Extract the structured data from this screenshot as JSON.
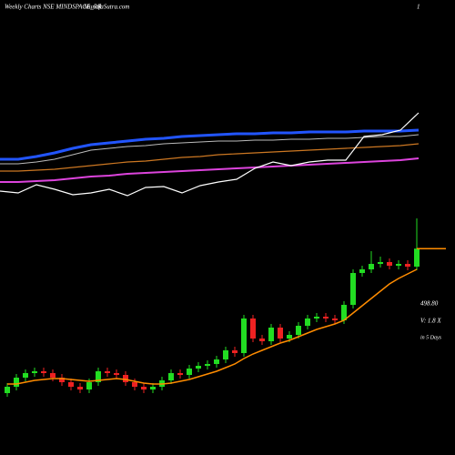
{
  "chart_data": [
    {
      "type": "candlestick",
      "title": "Weekly Charts NSE MINDSPACE_RR",
      "source": "MunafaSutra.com",
      "page": "1",
      "annotations": [
        "498.80",
        "V: 1.8 X",
        "in 5 Days"
      ],
      "ylim": [
        312,
        542
      ],
      "up_color": "#22dd22",
      "down_color": "#ee2222",
      "ma_color": "#ff8c00",
      "last_color": "#ff8c00",
      "open": [
        340,
        347,
        357,
        362,
        364,
        362,
        357,
        352,
        347,
        344,
        352,
        364,
        362,
        360,
        352,
        347,
        344,
        347,
        354,
        362,
        360,
        367,
        370,
        372,
        377,
        387,
        384,
        422,
        400,
        397,
        412,
        400,
        404,
        414,
        422,
        424,
        422,
        420,
        437,
        472,
        476,
        482,
        484,
        480,
        482,
        479
      ],
      "high": [
        351,
        361,
        366,
        368,
        368,
        366,
        361,
        356,
        351,
        356,
        368,
        368,
        366,
        364,
        356,
        351,
        351,
        358,
        366,
        366,
        371,
        374,
        376,
        381,
        391,
        391,
        426,
        426,
        404,
        416,
        416,
        408,
        418,
        426,
        428,
        428,
        426,
        441,
        476,
        480,
        496,
        490,
        488,
        486,
        486,
        532
      ],
      "low": [
        336,
        343,
        353,
        358,
        358,
        353,
        348,
        343,
        340,
        340,
        348,
        358,
        356,
        348,
        343,
        340,
        340,
        343,
        350,
        356,
        356,
        363,
        366,
        368,
        373,
        380,
        380,
        396,
        393,
        393,
        396,
        396,
        400,
        410,
        418,
        418,
        416,
        416,
        433,
        468,
        472,
        478,
        476,
        476,
        475,
        475
      ],
      "close": [
        347,
        357,
        362,
        364,
        362,
        357,
        352,
        347,
        344,
        352,
        364,
        362,
        360,
        352,
        347,
        344,
        347,
        354,
        362,
        360,
        367,
        370,
        372,
        377,
        387,
        384,
        422,
        400,
        397,
        412,
        400,
        404,
        414,
        422,
        424,
        422,
        420,
        437,
        472,
        476,
        482,
        484,
        480,
        482,
        479,
        498.8
      ],
      "ma": [
        350,
        350,
        352,
        354,
        355,
        356,
        356,
        355,
        354,
        353,
        354,
        355,
        356,
        355,
        353,
        351,
        350,
        350,
        351,
        353,
        355,
        358,
        361,
        364,
        368,
        372,
        378,
        383,
        387,
        391,
        395,
        398,
        402,
        406,
        410,
        413,
        416,
        420,
        428,
        436,
        444,
        452,
        460,
        466,
        471,
        476
      ]
    },
    {
      "type": "line",
      "ylim": [
        0,
        115
      ],
      "series": [
        {
          "color": "#2255ff",
          "width": 3,
          "values": [
            55,
            55,
            58,
            62,
            67,
            71,
            73,
            75,
            77,
            78,
            80,
            81,
            82,
            83,
            83,
            84,
            84,
            85,
            85,
            85,
            86,
            86,
            86,
            87
          ]
        },
        {
          "color": "#bbbbbb",
          "width": 1,
          "values": [
            50,
            50,
            52,
            55,
            60,
            65,
            67,
            69,
            70,
            72,
            73,
            74,
            75,
            75,
            76,
            76,
            77,
            77,
            78,
            78,
            79,
            80,
            80,
            82
          ]
        },
        {
          "color": "#cc7722",
          "width": 1.2,
          "values": [
            42,
            42,
            43,
            44,
            46,
            48,
            50,
            52,
            53,
            55,
            57,
            58,
            60,
            61,
            62,
            63,
            64,
            65,
            66,
            67,
            68,
            69,
            70,
            72
          ]
        },
        {
          "color": "#dd44dd",
          "width": 2,
          "values": [
            30,
            30,
            31,
            32,
            34,
            36,
            37,
            39,
            40,
            41,
            42,
            43,
            44,
            45,
            46,
            47,
            48,
            49,
            50,
            51,
            52,
            53,
            54,
            56
          ]
        },
        {
          "color": "#ffffff",
          "width": 1.2,
          "values": [
            20,
            18,
            27,
            22,
            16,
            18,
            22,
            15,
            24,
            25,
            18,
            26,
            30,
            33,
            45,
            52,
            48,
            52,
            54,
            54,
            80,
            82,
            87,
            106
          ]
        }
      ]
    }
  ]
}
